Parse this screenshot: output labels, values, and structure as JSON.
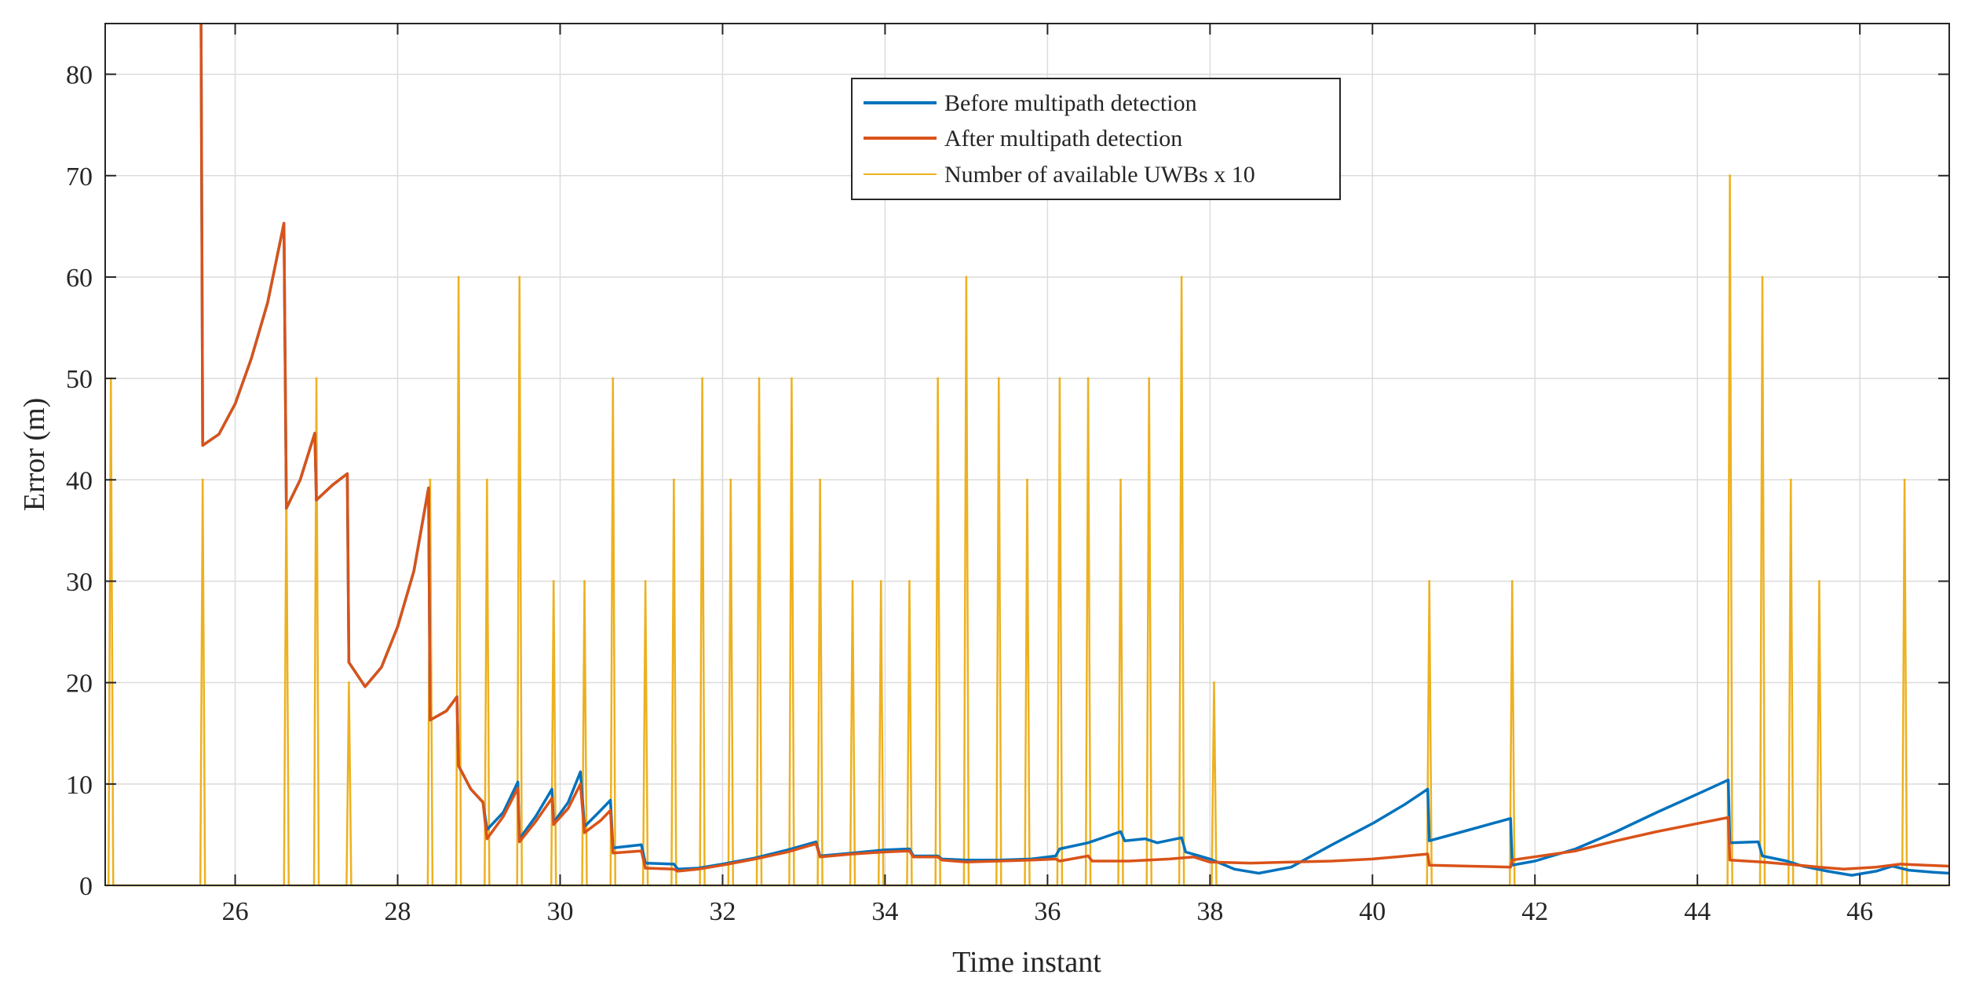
{
  "chart_data": {
    "type": "line",
    "title": "",
    "xlabel": "Time instant",
    "ylabel": "Error (m)",
    "xlim": [
      24.4,
      47.1
    ],
    "ylim": [
      0,
      85
    ],
    "grid": true,
    "legend_position": "top-center",
    "x_ticks": [
      26,
      28,
      30,
      32,
      34,
      36,
      38,
      40,
      42,
      44,
      46
    ],
    "x_tick_labels": [
      "26",
      "28",
      "30",
      "32",
      "34",
      "36",
      "38",
      "40",
      "42",
      "44",
      "46"
    ],
    "y_ticks": [
      0,
      10,
      20,
      30,
      40,
      50,
      60,
      70,
      80
    ],
    "y_tick_labels": [
      "0",
      "10",
      "20",
      "30",
      "40",
      "50",
      "60",
      "70",
      "80"
    ],
    "colors": {
      "before": "#0072BD",
      "after": "#D95319",
      "uwb": "#EDB120",
      "grid": "#dcdcdc",
      "axis": "#262626"
    },
    "series": [
      {
        "name": "Before multipath detection",
        "points": [
          [
            25.58,
            85
          ],
          [
            25.6,
            43.4
          ],
          [
            25.8,
            44.5
          ],
          [
            26.0,
            47.5
          ],
          [
            26.2,
            52
          ],
          [
            26.4,
            57.5
          ],
          [
            26.6,
            65.3
          ],
          [
            26.63,
            37.2
          ],
          [
            26.8,
            40
          ],
          [
            26.98,
            44.6
          ],
          [
            27.0,
            38
          ],
          [
            27.2,
            39.5
          ],
          [
            27.38,
            40.6
          ],
          [
            27.4,
            22
          ],
          [
            27.6,
            19.6
          ],
          [
            27.8,
            21.5
          ],
          [
            28.0,
            25.5
          ],
          [
            28.2,
            31
          ],
          [
            28.38,
            39.2
          ],
          [
            28.4,
            16.3
          ],
          [
            28.6,
            17.2
          ],
          [
            28.73,
            18.6
          ],
          [
            28.75,
            11.8
          ],
          [
            28.9,
            9.5
          ],
          [
            29.05,
            8.2
          ],
          [
            29.1,
            5.5
          ],
          [
            29.3,
            7.2
          ],
          [
            29.48,
            10.2
          ],
          [
            29.5,
            4.6
          ],
          [
            29.7,
            6.8
          ],
          [
            29.9,
            9.5
          ],
          [
            29.92,
            6.2
          ],
          [
            30.1,
            8.2
          ],
          [
            30.25,
            11.2
          ],
          [
            30.3,
            5.8
          ],
          [
            30.5,
            7.4
          ],
          [
            30.62,
            8.4
          ],
          [
            30.65,
            3.7
          ],
          [
            31.0,
            4.0
          ],
          [
            31.05,
            2.2
          ],
          [
            31.4,
            2.1
          ],
          [
            31.45,
            1.6
          ],
          [
            31.7,
            1.7
          ],
          [
            32.0,
            2.1
          ],
          [
            32.4,
            2.7
          ],
          [
            32.8,
            3.5
          ],
          [
            33.15,
            4.3
          ],
          [
            33.2,
            2.9
          ],
          [
            33.6,
            3.2
          ],
          [
            34.0,
            3.5
          ],
          [
            34.3,
            3.6
          ],
          [
            34.35,
            2.9
          ],
          [
            34.65,
            2.9
          ],
          [
            34.7,
            2.6
          ],
          [
            35.0,
            2.5
          ],
          [
            35.4,
            2.5
          ],
          [
            35.8,
            2.6
          ],
          [
            36.1,
            2.9
          ],
          [
            36.15,
            3.6
          ],
          [
            36.5,
            4.2
          ],
          [
            36.9,
            5.3
          ],
          [
            36.95,
            4.4
          ],
          [
            37.2,
            4.6
          ],
          [
            37.35,
            4.2
          ],
          [
            37.65,
            4.7
          ],
          [
            37.7,
            3.3
          ],
          [
            38.0,
            2.6
          ],
          [
            38.3,
            1.6
          ],
          [
            38.6,
            1.2
          ],
          [
            39.0,
            1.8
          ],
          [
            39.5,
            4.0
          ],
          [
            40.0,
            6.1
          ],
          [
            40.4,
            8.0
          ],
          [
            40.68,
            9.5
          ],
          [
            40.7,
            4.4
          ],
          [
            41.2,
            5.5
          ],
          [
            41.7,
            6.6
          ],
          [
            41.72,
            2.0
          ],
          [
            42.0,
            2.4
          ],
          [
            42.5,
            3.6
          ],
          [
            43.0,
            5.3
          ],
          [
            43.5,
            7.2
          ],
          [
            44.0,
            9.0
          ],
          [
            44.38,
            10.4
          ],
          [
            44.4,
            4.2
          ],
          [
            44.75,
            4.3
          ],
          [
            44.8,
            2.9
          ],
          [
            45.1,
            2.4
          ],
          [
            45.3,
            1.9
          ],
          [
            45.6,
            1.4
          ],
          [
            45.9,
            1.0
          ],
          [
            46.2,
            1.4
          ],
          [
            46.4,
            1.9
          ],
          [
            46.6,
            1.5
          ],
          [
            46.9,
            1.3
          ],
          [
            47.1,
            1.2
          ]
        ]
      },
      {
        "name": "After multipath detection",
        "points": [
          [
            25.58,
            85
          ],
          [
            25.6,
            43.4
          ],
          [
            25.8,
            44.5
          ],
          [
            26.0,
            47.5
          ],
          [
            26.2,
            52
          ],
          [
            26.4,
            57.5
          ],
          [
            26.6,
            65.3
          ],
          [
            26.63,
            37.2
          ],
          [
            26.8,
            40
          ],
          [
            26.98,
            44.6
          ],
          [
            27.0,
            38
          ],
          [
            27.2,
            39.5
          ],
          [
            27.38,
            40.6
          ],
          [
            27.4,
            22
          ],
          [
            27.6,
            19.6
          ],
          [
            27.8,
            21.5
          ],
          [
            28.0,
            25.5
          ],
          [
            28.2,
            31
          ],
          [
            28.38,
            39.2
          ],
          [
            28.4,
            16.3
          ],
          [
            28.6,
            17.2
          ],
          [
            28.73,
            18.6
          ],
          [
            28.75,
            11.8
          ],
          [
            28.9,
            9.5
          ],
          [
            29.05,
            8.2
          ],
          [
            29.1,
            4.6
          ],
          [
            29.3,
            6.8
          ],
          [
            29.48,
            9.6
          ],
          [
            29.5,
            4.3
          ],
          [
            29.7,
            6.3
          ],
          [
            29.9,
            8.6
          ],
          [
            29.92,
            6.0
          ],
          [
            30.1,
            7.6
          ],
          [
            30.25,
            10.0
          ],
          [
            30.3,
            5.2
          ],
          [
            30.5,
            6.4
          ],
          [
            30.62,
            7.4
          ],
          [
            30.65,
            3.2
          ],
          [
            31.0,
            3.4
          ],
          [
            31.05,
            1.7
          ],
          [
            31.4,
            1.6
          ],
          [
            31.45,
            1.4
          ],
          [
            31.7,
            1.6
          ],
          [
            32.0,
            2.0
          ],
          [
            32.4,
            2.6
          ],
          [
            32.8,
            3.3
          ],
          [
            33.15,
            4.1
          ],
          [
            33.2,
            2.8
          ],
          [
            33.6,
            3.1
          ],
          [
            34.0,
            3.3
          ],
          [
            34.3,
            3.4
          ],
          [
            34.35,
            2.8
          ],
          [
            34.65,
            2.8
          ],
          [
            34.7,
            2.5
          ],
          [
            35.0,
            2.3
          ],
          [
            35.4,
            2.4
          ],
          [
            35.8,
            2.5
          ],
          [
            36.1,
            2.6
          ],
          [
            36.15,
            2.4
          ],
          [
            36.5,
            2.9
          ],
          [
            36.55,
            2.4
          ],
          [
            37.0,
            2.4
          ],
          [
            37.5,
            2.6
          ],
          [
            37.8,
            2.8
          ],
          [
            38.0,
            2.3
          ],
          [
            38.5,
            2.2
          ],
          [
            39.0,
            2.3
          ],
          [
            39.5,
            2.4
          ],
          [
            40.0,
            2.6
          ],
          [
            40.68,
            3.1
          ],
          [
            40.7,
            2.0
          ],
          [
            41.2,
            1.9
          ],
          [
            41.7,
            1.8
          ],
          [
            41.72,
            2.5
          ],
          [
            42.5,
            3.4
          ],
          [
            43.0,
            4.4
          ],
          [
            43.5,
            5.3
          ],
          [
            44.0,
            6.1
          ],
          [
            44.38,
            6.7
          ],
          [
            44.4,
            2.5
          ],
          [
            44.8,
            2.3
          ],
          [
            45.1,
            2.1
          ],
          [
            45.5,
            1.8
          ],
          [
            45.8,
            1.6
          ],
          [
            46.2,
            1.8
          ],
          [
            46.5,
            2.1
          ],
          [
            46.8,
            2.0
          ],
          [
            47.1,
            1.9
          ]
        ]
      },
      {
        "name": "Number of available UWBs x 10",
        "baseline": 0,
        "spikes": [
          [
            24.47,
            50
          ],
          [
            25.6,
            40
          ],
          [
            26.63,
            40
          ],
          [
            27.0,
            50
          ],
          [
            27.4,
            20
          ],
          [
            28.4,
            40
          ],
          [
            28.75,
            60
          ],
          [
            29.1,
            40
          ],
          [
            29.5,
            60
          ],
          [
            29.92,
            30
          ],
          [
            30.3,
            30
          ],
          [
            30.65,
            50
          ],
          [
            31.05,
            30
          ],
          [
            31.4,
            40
          ],
          [
            31.75,
            50
          ],
          [
            32.1,
            40
          ],
          [
            32.45,
            50
          ],
          [
            32.85,
            50
          ],
          [
            33.2,
            40
          ],
          [
            33.6,
            30
          ],
          [
            33.95,
            30
          ],
          [
            34.3,
            30
          ],
          [
            34.65,
            50
          ],
          [
            35.0,
            60
          ],
          [
            35.4,
            50
          ],
          [
            35.75,
            40
          ],
          [
            36.15,
            50
          ],
          [
            36.5,
            50
          ],
          [
            36.9,
            40
          ],
          [
            37.25,
            50
          ],
          [
            37.65,
            60
          ],
          [
            38.05,
            20
          ],
          [
            40.7,
            30
          ],
          [
            41.72,
            30
          ],
          [
            44.4,
            70
          ],
          [
            44.8,
            60
          ],
          [
            45.15,
            40
          ],
          [
            45.5,
            30
          ],
          [
            46.55,
            40
          ]
        ]
      }
    ]
  }
}
